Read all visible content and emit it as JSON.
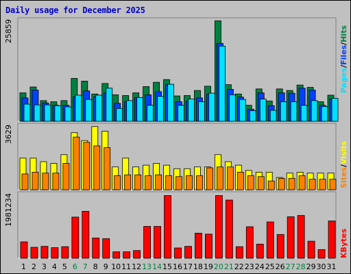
{
  "title": "Daily usage for December 2025",
  "colors": {
    "hits": "#008040",
    "files": "#0040ff",
    "pages": "#00e0ff",
    "visits": "#ffff00",
    "sites": "#ff8000",
    "kbytes": "#ff0000",
    "weekend_label": "#008040",
    "weekday_label": "#000000"
  },
  "right_labels": {
    "top": [
      {
        "text": "Pages",
        "key": "pages"
      },
      {
        "text": "/",
        "key": "sep"
      },
      {
        "text": "Files",
        "key": "files"
      },
      {
        "text": "/",
        "key": "sep"
      },
      {
        "text": "Hits",
        "key": "hits"
      }
    ],
    "middle": [
      {
        "text": "Sites",
        "key": "sites"
      },
      {
        "text": "/",
        "key": "sep"
      },
      {
        "text": "Visits",
        "key": "visits"
      }
    ],
    "bottom": [
      {
        "text": "KBytes",
        "key": "kbytes"
      }
    ]
  },
  "chart_data": [
    {
      "type": "bar",
      "panel": "hits-files-pages",
      "categories": [
        "1",
        "2",
        "3",
        "4",
        "5",
        "6",
        "7",
        "8",
        "9",
        "10",
        "11",
        "12",
        "13",
        "14",
        "15",
        "16",
        "17",
        "18",
        "19",
        "20",
        "21",
        "22",
        "23",
        "24",
        "25",
        "26",
        "27",
        "28",
        "29",
        "30",
        "31"
      ],
      "weekend_categories": [
        "6",
        "7",
        "13",
        "14",
        "20",
        "21",
        "27",
        "28"
      ],
      "ymax_label": "25859",
      "ylim": [
        0,
        25859
      ],
      "series": [
        {
          "name": "Hits",
          "values": [
            7300,
            8800,
            5300,
            5000,
            5300,
            11000,
            10300,
            7000,
            9700,
            6800,
            6600,
            7300,
            8900,
            10000,
            10700,
            6500,
            6600,
            7900,
            9000,
            25800,
            9400,
            7000,
            4100,
            8300,
            5200,
            8300,
            7900,
            9300,
            8700,
            5000,
            6700
          ]
        },
        {
          "name": "Files",
          "values": [
            6000,
            8000,
            4700,
            4100,
            4100,
            6300,
            7800,
            6300,
            7300,
            4600,
            5000,
            6100,
            6800,
            7600,
            9500,
            5000,
            5200,
            6000,
            6900,
            20000,
            8200,
            6200,
            3100,
            7300,
            4000,
            7300,
            7200,
            8500,
            8000,
            4100,
            5700
          ]
        },
        {
          "name": "Pages",
          "values": [
            4400,
            4200,
            4200,
            4000,
            3700,
            6700,
            5600,
            6700,
            8500,
            3300,
            5300,
            6100,
            4100,
            6400,
            9500,
            4100,
            5700,
            5000,
            7200,
            19300,
            6800,
            5600,
            2700,
            5700,
            2800,
            5000,
            5000,
            4100,
            5300,
            3800,
            5900
          ]
        }
      ]
    },
    {
      "type": "bar",
      "panel": "visits-sites",
      "categories": [
        "1",
        "2",
        "3",
        "4",
        "5",
        "6",
        "7",
        "8",
        "9",
        "10",
        "11",
        "12",
        "13",
        "14",
        "15",
        "16",
        "17",
        "18",
        "19",
        "20",
        "21",
        "22",
        "23",
        "24",
        "25",
        "26",
        "27",
        "28",
        "29",
        "30",
        "31"
      ],
      "ymax_label": "3629",
      "ylim": [
        0,
        3629
      ],
      "series": [
        {
          "name": "Visits",
          "values": [
            1800,
            1800,
            1600,
            1500,
            2000,
            3250,
            2800,
            3600,
            3330,
            1300,
            1800,
            1300,
            1400,
            1500,
            1400,
            1200,
            1200,
            1300,
            1300,
            2000,
            1600,
            1400,
            1100,
            1000,
            1000,
            700,
            950,
            1000,
            950,
            950,
            950
          ]
        },
        {
          "name": "Sites",
          "values": [
            900,
            1000,
            950,
            950,
            1500,
            3000,
            2700,
            2500,
            2400,
            800,
            850,
            850,
            800,
            850,
            800,
            750,
            800,
            800,
            1250,
            1300,
            1300,
            1000,
            800,
            750,
            500,
            650,
            650,
            800,
            600,
            600,
            600
          ]
        }
      ]
    },
    {
      "type": "bar",
      "panel": "kbytes",
      "categories": [
        "1",
        "2",
        "3",
        "4",
        "5",
        "6",
        "7",
        "8",
        "9",
        "10",
        "11",
        "12",
        "13",
        "14",
        "15",
        "16",
        "17",
        "18",
        "19",
        "20",
        "21",
        "22",
        "23",
        "24",
        "25",
        "26",
        "27",
        "28",
        "29",
        "30",
        "31"
      ],
      "ymax_label": "1981234",
      "ylim": [
        0,
        1981234
      ],
      "series": [
        {
          "name": "KBytes",
          "values": [
            510000,
            340000,
            370000,
            330000,
            360000,
            1280000,
            1460000,
            630000,
            610000,
            200000,
            200000,
            240000,
            990000,
            990000,
            1950000,
            320000,
            370000,
            780000,
            750000,
            1950000,
            1810000,
            360000,
            980000,
            440000,
            1130000,
            740000,
            1290000,
            1330000,
            530000,
            270000,
            1160000
          ]
        }
      ]
    }
  ]
}
